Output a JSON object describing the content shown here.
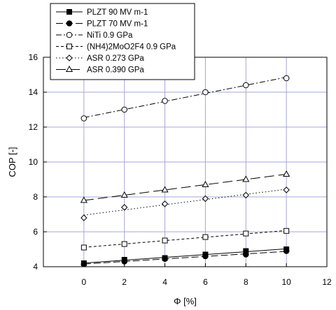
{
  "chart_data": {
    "type": "line",
    "xlabel": "Φ [%]",
    "ylabel": "COP [-]",
    "xlim": [
      -2,
      12
    ],
    "ylim": [
      4,
      16
    ],
    "xticks": [
      0,
      2,
      4,
      6,
      8,
      10,
      12
    ],
    "yticks": [
      4,
      6,
      8,
      10,
      12,
      14,
      16
    ],
    "grid": true,
    "legend_position": "top-left",
    "series": [
      {
        "name": "PLZT 90 MV m-1",
        "marker": "square-filled",
        "dash": "solid",
        "color": "#000000",
        "x": [
          0,
          2,
          4,
          6,
          8,
          10
        ],
        "y": [
          4.2,
          4.4,
          4.5,
          4.7,
          4.9,
          5.0
        ]
      },
      {
        "name": "PLZT 70 MV m-1",
        "marker": "circle-filled",
        "dash": "long-dash",
        "color": "#000000",
        "x": [
          0,
          2,
          4,
          6,
          8,
          10
        ],
        "y": [
          4.15,
          4.3,
          4.45,
          4.6,
          4.7,
          4.9
        ]
      },
      {
        "name": "NiTi 0.9 GPa",
        "marker": "circle-open",
        "dash": "dash-dot",
        "color": "#000000",
        "x": [
          0,
          2,
          4,
          6,
          8,
          10
        ],
        "y": [
          12.5,
          13.0,
          13.5,
          14.0,
          14.4,
          14.8
        ]
      },
      {
        "name": "(NH4)2MoO2F4 0.9 GPa",
        "marker": "square-open",
        "dash": "short-dash",
        "color": "#000000",
        "x": [
          0,
          2,
          4,
          6,
          8,
          10
        ],
        "y": [
          5.1,
          5.3,
          5.5,
          5.7,
          5.9,
          6.05
        ]
      },
      {
        "name": "ASR 0.273 GPa",
        "marker": "diamond-open",
        "dash": "dotted",
        "color": "#000000",
        "x": [
          0,
          2,
          4,
          6,
          8,
          10
        ],
        "y": [
          6.8,
          7.4,
          7.6,
          7.9,
          8.1,
          8.4
        ]
      },
      {
        "name": "ASR 0.390 GPa",
        "marker": "triangle-open",
        "dash": "long-dash-wide",
        "color": "#000000",
        "x": [
          0,
          2,
          4,
          6,
          8,
          10
        ],
        "y": [
          7.8,
          8.1,
          8.4,
          8.7,
          9.0,
          9.3
        ]
      }
    ],
    "colors": {
      "grid": "#a6a6d9",
      "frame": "#000000",
      "marker_fill_open": "#ffffff"
    }
  }
}
